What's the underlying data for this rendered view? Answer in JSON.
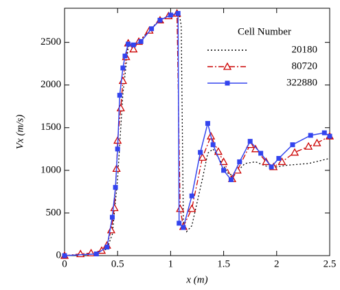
{
  "chart_data": {
    "type": "line",
    "x_label": "x (m)",
    "y_label": "Vx (m/s)",
    "legend_title": "Cell Number",
    "legend_position": "upper right",
    "xlim": [
      0,
      2.5
    ],
    "xticks": [
      0,
      0.5,
      1,
      1.5,
      2,
      2.5
    ],
    "ylim": [
      0,
      2900
    ],
    "yticks": [
      0,
      500,
      1000,
      1500,
      2000,
      2500
    ],
    "series": [
      {
        "name": "20180",
        "color": "#000000",
        "dash": "dotted",
        "marker": "none",
        "x": [
          0,
          0.3,
          0.4,
          0.45,
          0.5,
          0.55,
          0.6,
          0.7,
          0.8,
          0.9,
          1.0,
          1.08,
          1.1,
          1.12,
          1.15,
          1.2,
          1.3,
          1.35,
          1.4,
          1.5,
          1.55,
          1.6,
          1.7,
          1.8,
          1.9,
          2.0,
          2.1,
          2.3,
          2.5
        ],
        "values": [
          0,
          20,
          80,
          250,
          900,
          1900,
          2450,
          2500,
          2650,
          2760,
          2820,
          2840,
          2700,
          400,
          280,
          350,
          900,
          1200,
          1250,
          1050,
          950,
          950,
          1080,
          1100,
          1050,
          1040,
          1060,
          1080,
          1140
        ]
      },
      {
        "name": "80720",
        "color": "#cc0000",
        "dash": "dashdot",
        "marker": "triangle",
        "x": [
          0,
          0.15,
          0.25,
          0.35,
          0.4,
          0.44,
          0.47,
          0.49,
          0.5,
          0.53,
          0.55,
          0.58,
          0.6,
          0.65,
          0.7,
          0.8,
          0.9,
          0.98,
          1.06,
          1.09,
          1.12,
          1.2,
          1.3,
          1.38,
          1.45,
          1.5,
          1.58,
          1.63,
          1.75,
          1.8,
          1.9,
          1.97,
          2.05,
          2.17,
          2.3,
          2.38,
          2.5
        ],
        "values": [
          0,
          20,
          30,
          60,
          120,
          300,
          560,
          1020,
          1350,
          1730,
          2050,
          2330,
          2490,
          2420,
          2510,
          2640,
          2760,
          2810,
          2840,
          550,
          340,
          550,
          1150,
          1400,
          1220,
          1100,
          900,
          1000,
          1300,
          1250,
          1100,
          1040,
          1100,
          1210,
          1280,
          1320,
          1400
        ]
      },
      {
        "name": "322880",
        "color": "#3344ee",
        "dash": "solid",
        "marker": "square",
        "x": [
          0,
          0.3,
          0.4,
          0.45,
          0.48,
          0.5,
          0.52,
          0.55,
          0.57,
          0.6,
          0.65,
          0.72,
          0.82,
          0.9,
          1.0,
          1.07,
          1.08,
          1.12,
          1.2,
          1.28,
          1.35,
          1.4,
          1.5,
          1.57,
          1.65,
          1.75,
          1.85,
          1.95,
          2.02,
          2.15,
          2.32,
          2.45,
          2.5
        ],
        "values": [
          0,
          20,
          100,
          450,
          800,
          1250,
          1880,
          2200,
          2340,
          2480,
          2470,
          2510,
          2660,
          2760,
          2820,
          2840,
          380,
          330,
          700,
          1210,
          1550,
          1300,
          1000,
          890,
          1100,
          1340,
          1200,
          1040,
          1140,
          1300,
          1410,
          1440,
          1400
        ]
      }
    ]
  }
}
